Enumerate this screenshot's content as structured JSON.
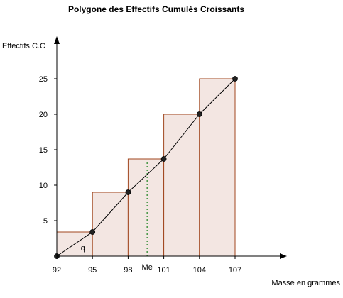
{
  "chart_data": {
    "type": "line",
    "title": "Polygone des Effectifs Cumulés Croissants",
    "ylabel": "Effectifs C.C",
    "xlabel": "Masse en grammes",
    "xlim": [
      92,
      107
    ],
    "ylim": [
      0,
      25
    ],
    "x_ticks": [
      92,
      95,
      98,
      101,
      104,
      107
    ],
    "y_ticks": [
      5,
      10,
      15,
      20,
      25
    ],
    "grid": false,
    "bins": [
      {
        "x0": 92,
        "x1": 95,
        "value": 3.4
      },
      {
        "x0": 95,
        "x1": 98,
        "value": 9
      },
      {
        "x0": 98,
        "x1": 101,
        "value": 13.7
      },
      {
        "x0": 101,
        "x1": 104,
        "value": 20
      },
      {
        "x0": 104,
        "x1": 107,
        "value": 25
      }
    ],
    "series": [
      {
        "x": [
          92,
          95,
          98,
          101,
          104,
          107
        ],
        "values": [
          0,
          3.4,
          9,
          13.7,
          20,
          25
        ]
      }
    ],
    "annotations": {
      "median": {
        "label": "Me",
        "x": 99.6
      },
      "q": {
        "label": "q",
        "x": 94.2,
        "y": 0.8
      }
    },
    "colors": {
      "bar_fill": "#f3e6e2",
      "bar_stroke": "#a0461e",
      "line": "#000000",
      "median_line": "#2e8b2e"
    }
  }
}
